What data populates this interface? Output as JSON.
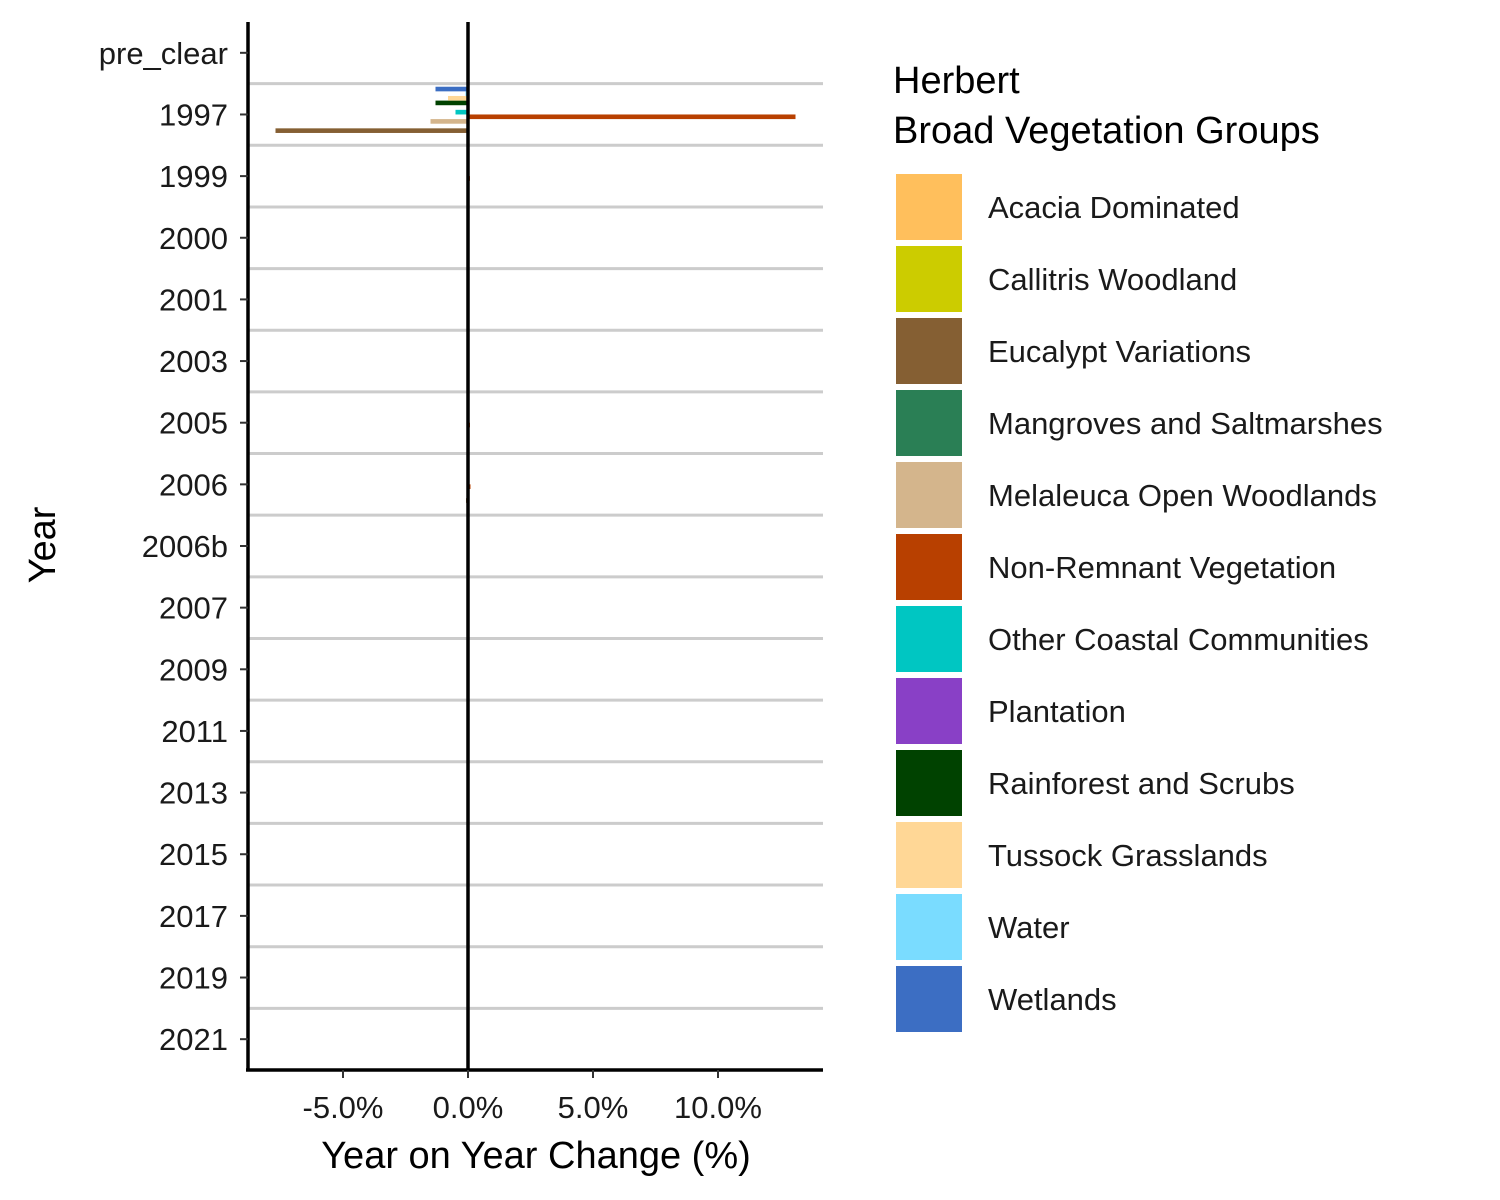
{
  "chart_data": {
    "type": "bar",
    "orientation": "horizontal",
    "xlabel": "Year on Year Change (%)",
    "ylabel": "Year",
    "xlim": [
      -8.8,
      14.2
    ],
    "x_ticks": [
      {
        "value": -5,
        "label": "-5.0%"
      },
      {
        "value": 0,
        "label": "0.0%"
      },
      {
        "value": 5,
        "label": "5.0%"
      },
      {
        "value": 10,
        "label": "10.0%"
      }
    ],
    "categories": [
      "pre_clear",
      "1997",
      "1999",
      "2000",
      "2001",
      "2003",
      "2005",
      "2006",
      "2006b",
      "2007",
      "2009",
      "2011",
      "2013",
      "2015",
      "2017",
      "2019",
      "2021"
    ],
    "legend": {
      "title_lines": [
        "Herbert",
        "Broad Vegetation Groups"
      ],
      "position": "right"
    },
    "grid": {
      "horizontal_between_categories": true,
      "vertical": false
    },
    "zero_line": true,
    "series": [
      {
        "name": "Acacia Dominated",
        "color": "#FFBF5C",
        "values": [
          0,
          0,
          0,
          0,
          0,
          0,
          0,
          0,
          0,
          0,
          0,
          0,
          0,
          0,
          0,
          0,
          0
        ]
      },
      {
        "name": "Callitris Woodland",
        "color": "#CCCC00",
        "values": [
          0,
          0,
          0,
          0,
          0,
          0,
          0,
          0,
          0,
          0,
          0,
          0,
          0,
          0,
          0,
          0,
          0
        ]
      },
      {
        "name": "Eucalypt Variations",
        "color": "#855F33",
        "values": [
          0,
          -7.7,
          -0.04,
          -0.03,
          0,
          0,
          -0.05,
          -0.08,
          0,
          0,
          0,
          0,
          0,
          0,
          -0.02,
          0,
          0
        ]
      },
      {
        "name": "Mangroves and Saltmarshes",
        "color": "#2A7F55",
        "values": [
          0,
          -0.05,
          0,
          0,
          0,
          0,
          0,
          0,
          0,
          0,
          0,
          0,
          0,
          0,
          0,
          0,
          0
        ]
      },
      {
        "name": "Melaleuca Open Woodlands",
        "color": "#D4B58C",
        "values": [
          0,
          -1.5,
          -0.03,
          -0.02,
          0,
          0,
          -0.03,
          -0.05,
          0,
          0,
          0,
          0,
          0,
          0,
          0,
          0,
          0
        ]
      },
      {
        "name": "Non-Remnant Vegetation",
        "color": "#B84000",
        "values": [
          0,
          13.1,
          0.08,
          0.06,
          0,
          0,
          0.08,
          0.1,
          0,
          0,
          0,
          0,
          0,
          0,
          0.02,
          0,
          0
        ]
      },
      {
        "name": "Other Coastal Communities",
        "color": "#00C6C2",
        "values": [
          0,
          -0.5,
          0,
          0,
          0,
          0,
          0,
          0,
          0,
          0,
          0,
          0,
          0,
          0,
          0,
          0,
          0
        ]
      },
      {
        "name": "Plantation",
        "color": "#8940C6",
        "values": [
          0,
          0,
          0,
          0,
          0,
          0,
          0,
          0,
          0,
          0,
          0,
          0,
          0,
          0,
          0,
          0,
          0
        ]
      },
      {
        "name": "Rainforest and Scrubs",
        "color": "#004200",
        "values": [
          0,
          -1.3,
          0,
          0,
          0,
          0,
          0,
          0,
          0,
          0,
          0,
          0,
          0,
          0,
          0,
          0,
          0
        ]
      },
      {
        "name": "Tussock Grasslands",
        "color": "#FFD796",
        "values": [
          0,
          -0.8,
          0,
          0,
          0,
          0,
          0,
          0,
          0,
          0,
          0,
          0,
          0,
          0,
          0,
          0,
          0
        ]
      },
      {
        "name": "Water",
        "color": "#7ADCFF",
        "values": [
          0,
          -0.1,
          0,
          0,
          0,
          0,
          0,
          0,
          0,
          0,
          0,
          0,
          0,
          0,
          0,
          0,
          0
        ]
      },
      {
        "name": "Wetlands",
        "color": "#3C6EC3",
        "values": [
          0,
          -1.3,
          0,
          0,
          0,
          0,
          0,
          0,
          0,
          0,
          0,
          0,
          0,
          0,
          0,
          0,
          0
        ]
      }
    ]
  }
}
